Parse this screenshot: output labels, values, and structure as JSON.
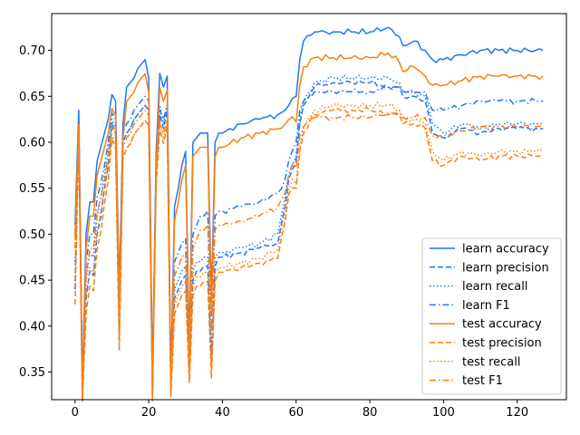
{
  "chart_data": {
    "type": "line",
    "title": "",
    "xlabel": "",
    "ylabel": "",
    "xlim": [
      -6.35,
      133.35
    ],
    "ylim": [
      0.32,
      0.74
    ],
    "x_ticks": [
      0,
      20,
      40,
      60,
      80,
      100,
      120
    ],
    "y_ticks": [
      0.35,
      0.4,
      0.45,
      0.5,
      0.55,
      0.6,
      0.65,
      0.7
    ],
    "y_tick_labels": [
      "0.35",
      "0.40",
      "0.45",
      "0.50",
      "0.55",
      "0.60",
      "0.65",
      "0.70"
    ],
    "x_tick_labels": [
      "0",
      "20",
      "40",
      "60",
      "80",
      "100",
      "120"
    ],
    "legend_position": "lower-right",
    "grid": false,
    "colors": {
      "learn": "#1f77f4",
      "test": "#ff7f0e"
    },
    "keypoints": {
      "x": [
        0,
        1,
        2,
        3,
        4,
        5,
        6,
        7,
        8,
        9,
        10,
        11,
        12,
        13,
        14,
        15,
        16,
        17,
        18,
        19,
        20,
        21,
        22,
        23,
        24,
        25,
        26,
        27,
        28,
        29,
        30,
        31,
        32,
        33,
        34,
        35,
        36,
        37,
        38,
        39,
        40,
        45,
        50,
        55,
        57,
        58,
        60,
        61,
        62,
        65,
        70,
        75,
        80,
        85,
        88,
        89,
        92,
        95,
        97,
        100,
        105,
        110,
        115,
        120,
        125,
        127
      ],
      "accuracy": [
        0.51,
        0.635,
        0.335,
        0.5,
        0.535,
        0.535,
        0.58,
        0.595,
        0.61,
        0.625,
        0.652,
        0.645,
        0.44,
        0.62,
        0.66,
        0.665,
        0.67,
        0.68,
        0.685,
        0.69,
        0.67,
        0.34,
        0.59,
        0.675,
        0.66,
        0.672,
        0.345,
        0.53,
        0.55,
        0.575,
        0.59,
        0.38,
        0.6,
        0.605,
        0.61,
        0.61,
        0.61,
        0.43,
        0.6,
        0.61,
        0.61,
        0.62,
        0.625,
        0.63,
        0.635,
        0.64,
        0.65,
        0.69,
        0.71,
        0.72,
        0.72,
        0.72,
        0.72,
        0.725,
        0.715,
        0.705,
        0.71,
        0.7,
        0.69,
        0.69,
        0.695,
        0.7,
        0.7,
        0.7,
        0.7,
        0.7
      ],
      "precision": [
        0.44,
        0.62,
        0.335,
        0.43,
        0.46,
        0.455,
        0.5,
        0.52,
        0.55,
        0.575,
        0.62,
        0.61,
        0.39,
        0.6,
        0.61,
        0.615,
        0.625,
        0.63,
        0.635,
        0.64,
        0.635,
        0.335,
        0.57,
        0.63,
        0.615,
        0.635,
        0.34,
        0.43,
        0.44,
        0.45,
        0.455,
        0.355,
        0.45,
        0.46,
        0.46,
        0.465,
        0.465,
        0.36,
        0.465,
        0.475,
        0.475,
        0.48,
        0.485,
        0.49,
        0.53,
        0.56,
        0.58,
        0.62,
        0.64,
        0.66,
        0.665,
        0.665,
        0.665,
        0.66,
        0.66,
        0.65,
        0.65,
        0.645,
        0.61,
        0.605,
        0.615,
        0.61,
        0.615,
        0.615,
        0.615,
        0.615
      ],
      "recall": [
        0.47,
        0.62,
        0.335,
        0.45,
        0.48,
        0.475,
        0.52,
        0.54,
        0.565,
        0.59,
        0.625,
        0.615,
        0.4,
        0.6,
        0.61,
        0.615,
        0.625,
        0.63,
        0.635,
        0.64,
        0.635,
        0.34,
        0.58,
        0.64,
        0.62,
        0.64,
        0.34,
        0.44,
        0.45,
        0.46,
        0.465,
        0.36,
        0.46,
        0.47,
        0.47,
        0.475,
        0.475,
        0.37,
        0.475,
        0.48,
        0.48,
        0.485,
        0.49,
        0.5,
        0.54,
        0.565,
        0.585,
        0.625,
        0.645,
        0.665,
        0.67,
        0.67,
        0.67,
        0.67,
        0.665,
        0.655,
        0.655,
        0.65,
        0.62,
        0.61,
        0.62,
        0.615,
        0.62,
        0.62,
        0.62,
        0.62
      ],
      "f1": [
        0.5,
        0.625,
        0.335,
        0.47,
        0.5,
        0.5,
        0.54,
        0.555,
        0.575,
        0.6,
        0.632,
        0.625,
        0.42,
        0.61,
        0.62,
        0.625,
        0.635,
        0.64,
        0.645,
        0.65,
        0.645,
        0.34,
        0.58,
        0.635,
        0.625,
        0.64,
        0.34,
        0.47,
        0.48,
        0.49,
        0.495,
        0.36,
        0.5,
        0.51,
        0.52,
        0.52,
        0.525,
        0.41,
        0.52,
        0.525,
        0.525,
        0.53,
        0.535,
        0.545,
        0.56,
        0.58,
        0.6,
        0.635,
        0.645,
        0.655,
        0.655,
        0.655,
        0.655,
        0.66,
        0.66,
        0.655,
        0.655,
        0.655,
        0.635,
        0.635,
        0.64,
        0.645,
        0.645,
        0.645,
        0.645,
        0.645
      ]
    },
    "series": [
      {
        "name": "learn accuracy",
        "group": "learn",
        "metric": "accuracy",
        "style": "solid",
        "offset": 0.0
      },
      {
        "name": "learn precision",
        "group": "learn",
        "metric": "precision",
        "style": "dashed",
        "offset": 0.0
      },
      {
        "name": "learn recall",
        "group": "learn",
        "metric": "recall",
        "style": "dotted",
        "offset": 0.0
      },
      {
        "name": "learn F1",
        "group": "learn",
        "metric": "f1",
        "style": "dashdot",
        "offset": 0.0
      },
      {
        "name": "test accuracy",
        "group": "test",
        "metric": "accuracy",
        "style": "solid",
        "offset": -0.028
      },
      {
        "name": "test precision",
        "group": "test",
        "metric": "precision",
        "style": "dashed",
        "offset": -0.03
      },
      {
        "name": "test recall",
        "group": "test",
        "metric": "recall",
        "style": "dotted",
        "offset": -0.03
      },
      {
        "name": "test F1",
        "group": "test",
        "metric": "f1",
        "style": "dashdot",
        "offset": -0.028
      }
    ],
    "legend": [
      "learn accuracy",
      "learn precision",
      "learn recall",
      "learn F1",
      "test accuracy",
      "test precision",
      "test recall",
      "test F1"
    ]
  }
}
